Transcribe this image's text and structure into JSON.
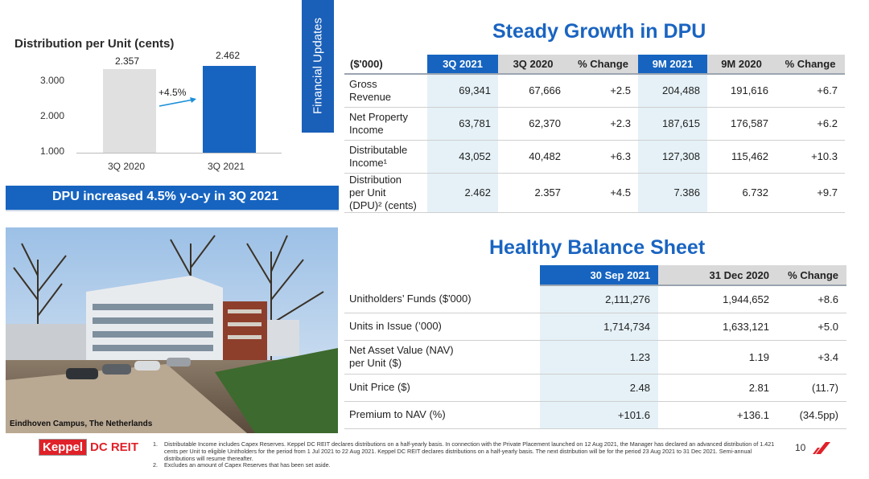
{
  "chart": {
    "title": "Distribution per Unit (cents)",
    "y_ticks": [
      "3.000",
      "2.000",
      "1.000"
    ],
    "growth_label": "+4.5%",
    "banner": "DPU increased 4.5% y-o-y in 3Q 2021",
    "bar_colors": [
      "#e0e0e0",
      "#1664c0"
    ]
  },
  "chart_data": {
    "type": "bar",
    "title": "Distribution per Unit (cents)",
    "categories": [
      "3Q 2020",
      "3Q 2021"
    ],
    "values": [
      2.357,
      2.462
    ],
    "value_labels": [
      "2.357",
      "2.462"
    ],
    "annotation": "+4.5%",
    "xlabel": "",
    "ylabel": "",
    "ylim": [
      0,
      3.0
    ],
    "y_ticks": [
      "3.000",
      "2.000",
      "1.000"
    ],
    "grid": false
  },
  "side_tab": {
    "label": "Financial Updates"
  },
  "photo": {
    "caption": "Eindhoven Campus, The Netherlands"
  },
  "dpu_section": {
    "title": "Steady Growth in DPU",
    "header_label": "($'000)",
    "columns": [
      "3Q 2021",
      "3Q 2020",
      "% Change",
      "9M 2021",
      "9M 2020",
      "% Change"
    ],
    "rows": [
      {
        "label_lines": [
          "Gross",
          "Revenue"
        ],
        "values": [
          "69,341",
          "67,666",
          "+2.5",
          "204,488",
          "191,616",
          "+6.7"
        ]
      },
      {
        "label_lines": [
          "Net Property",
          "Income"
        ],
        "values": [
          "63,781",
          "62,370",
          "+2.3",
          "187,615",
          "176,587",
          "+6.2"
        ]
      },
      {
        "label_lines": [
          "Distributable",
          "Income¹"
        ],
        "values": [
          "43,052",
          "40,482",
          "+6.3",
          "127,308",
          "115,462",
          "+10.3"
        ]
      },
      {
        "label_lines": [
          "Distribution",
          "per Unit",
          "(DPU)² (cents)"
        ],
        "values": [
          "2.462",
          "2.357",
          "+4.5",
          "7.386",
          "6.732",
          "+9.7"
        ]
      }
    ]
  },
  "balance_section": {
    "title": "Healthy Balance Sheet",
    "columns": [
      "30 Sep 2021",
      "31 Dec 2020",
      "% Change"
    ],
    "rows": [
      {
        "label_lines": [
          "Unitholders’ Funds ($'000)"
        ],
        "values": [
          "2,111,276",
          "1,944,652",
          "+8.6"
        ]
      },
      {
        "label_lines": [
          "Units in Issue (’000)"
        ],
        "values": [
          "1,714,734",
          "1,633,121",
          "+5.0"
        ]
      },
      {
        "label_lines": [
          "Net Asset Value (NAV)",
          "per Unit ($)"
        ],
        "values": [
          "1.23",
          "1.19",
          "+3.4"
        ]
      },
      {
        "label_lines": [
          "Unit Price ($)"
        ],
        "values": [
          "2.48",
          "2.81",
          "(11.7)"
        ]
      },
      {
        "label_lines": [
          "Premium to NAV (%)"
        ],
        "values": [
          "+101.6",
          "+136.1",
          "(34.5pp)"
        ]
      }
    ]
  },
  "footer": {
    "logo_keppel": "Keppel",
    "logo_dc": "DC REIT",
    "footnotes": [
      {
        "num": "1.",
        "text": "Distributable Income includes Capex Reserves. Keppel DC REIT declares distributions on a half-yearly basis. In connection with the Private Placement launched on 12 Aug 2021, the Manager has declared an advanced distribution of 1.421 cents per Unit to eligible Unitholders for the period from 1 Jul 2021 to 22 Aug 2021. Keppel DC REIT declares distributions on a half-yearly basis. The next distribution will be for the period 23 Aug 2021 to 31 Dec 2021. Semi-annual distributions will resume thereafter."
      },
      {
        "num": "2.",
        "text": "Excludes an amount of Capex Reserves that has been set aside."
      }
    ],
    "page_number": "10"
  }
}
